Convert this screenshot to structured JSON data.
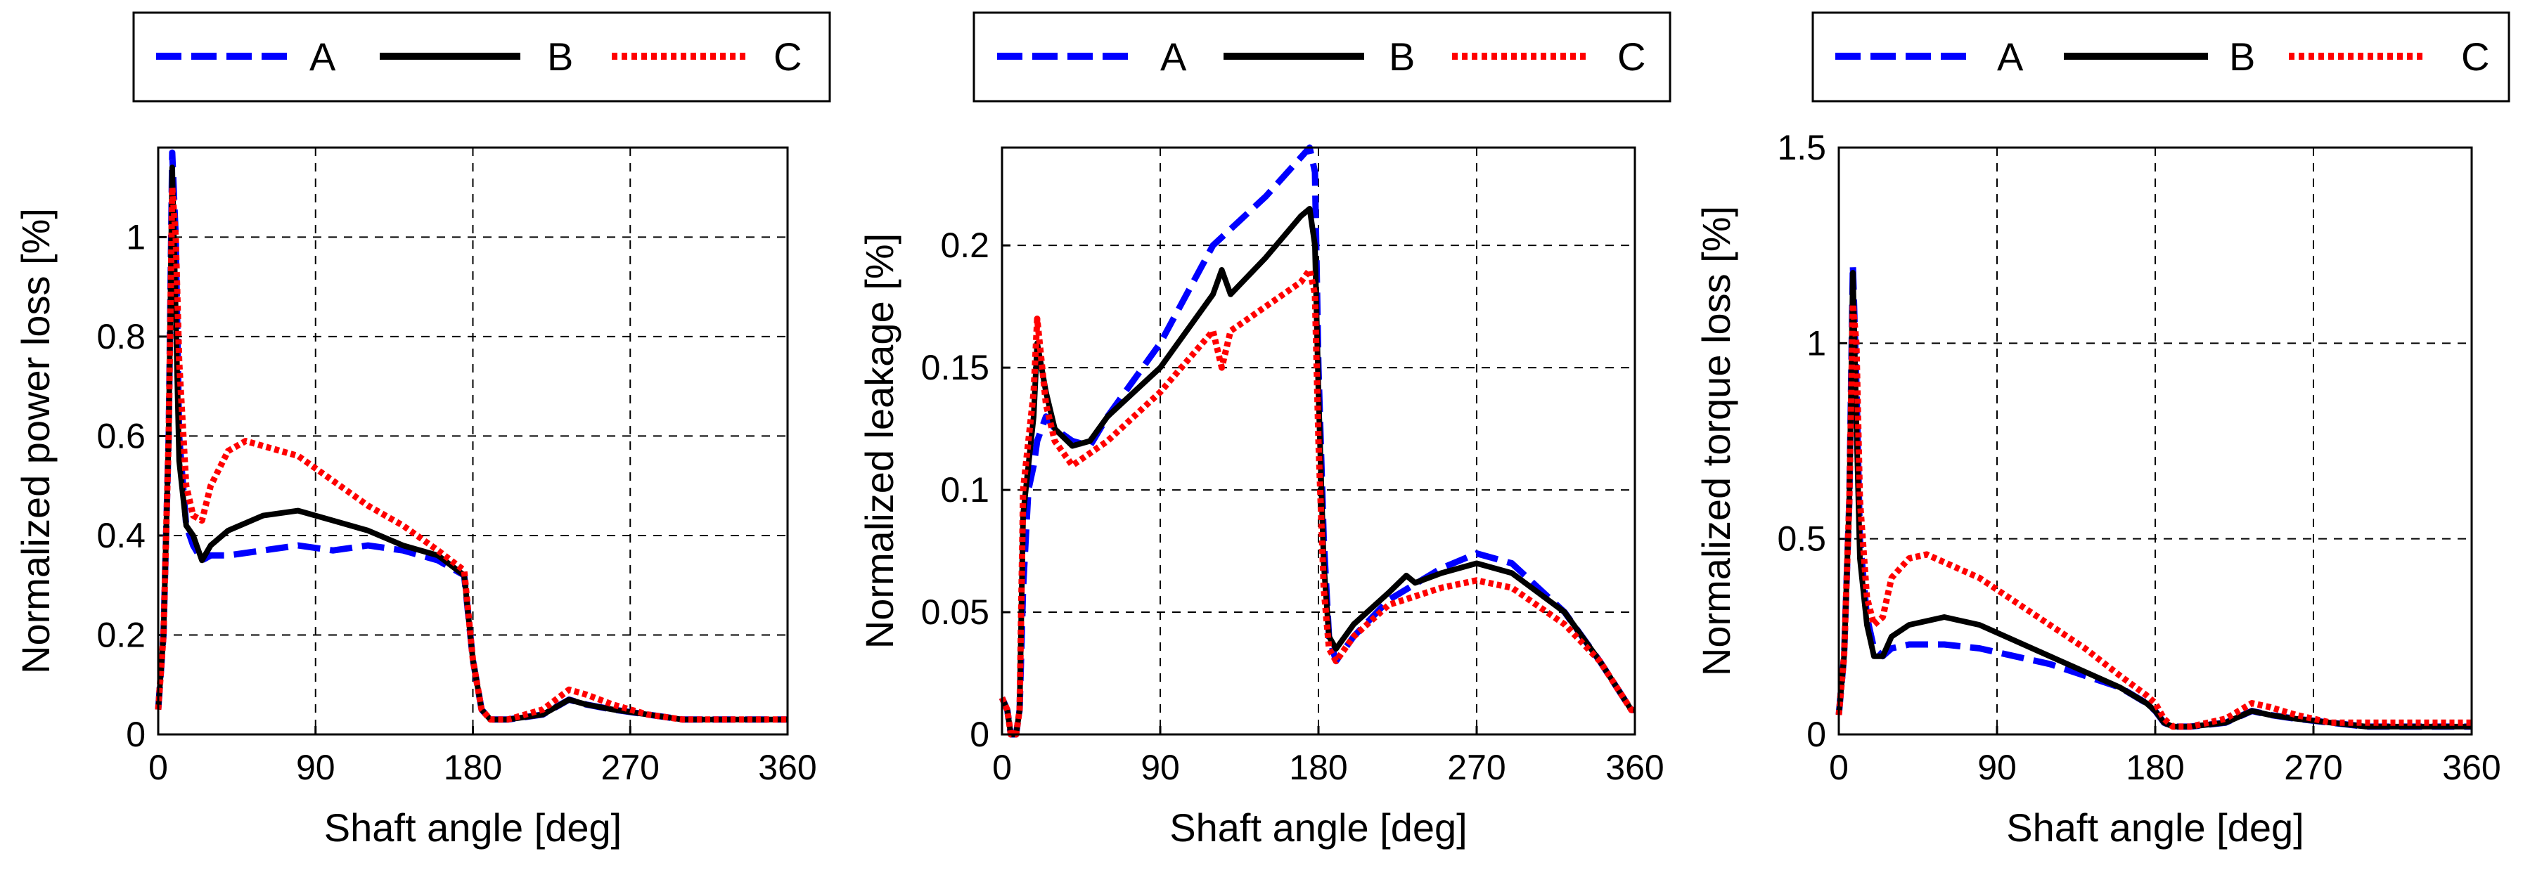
{
  "colors": {
    "A": "#0000ff",
    "B": "#000000",
    "C": "#ff0000"
  },
  "legend": [
    "A",
    "B",
    "C"
  ],
  "chart_data": [
    {
      "type": "line",
      "title": "",
      "xlabel": "Shaft angle [deg]",
      "ylabel": "Normalized power loss [%]",
      "xlim": [
        0,
        360
      ],
      "ylim": [
        0,
        1.18
      ],
      "xticks": [
        0,
        90,
        180,
        270,
        360
      ],
      "yticks": [
        0,
        0.2,
        0.4,
        0.6,
        0.8,
        1
      ],
      "xtick_labels": [
        "0",
        "90",
        "180",
        "270",
        "360"
      ],
      "ytick_labels": [
        "0",
        "0.2",
        "0.4",
        "0.6",
        "0.8",
        "1"
      ],
      "grid": true,
      "legend_position": "top",
      "series": [
        {
          "name": "A",
          "style": "dashed",
          "x": [
            0,
            3,
            6,
            8,
            10,
            12,
            16,
            20,
            25,
            30,
            40,
            60,
            80,
            100,
            120,
            140,
            160,
            175,
            180,
            185,
            190,
            200,
            220,
            235,
            245,
            260,
            280,
            300,
            330,
            360
          ],
          "y": [
            0.05,
            0.2,
            0.6,
            1.17,
            1.0,
            0.6,
            0.42,
            0.38,
            0.35,
            0.36,
            0.36,
            0.37,
            0.38,
            0.37,
            0.38,
            0.37,
            0.35,
            0.32,
            0.15,
            0.05,
            0.03,
            0.03,
            0.04,
            0.07,
            0.06,
            0.05,
            0.04,
            0.03,
            0.03,
            0.03
          ]
        },
        {
          "name": "B",
          "style": "solid",
          "x": [
            0,
            3,
            6,
            8,
            10,
            12,
            16,
            20,
            25,
            30,
            40,
            60,
            80,
            100,
            120,
            140,
            160,
            175,
            180,
            185,
            190,
            200,
            220,
            235,
            245,
            260,
            280,
            300,
            330,
            360
          ],
          "y": [
            0.05,
            0.2,
            0.6,
            1.14,
            0.85,
            0.55,
            0.42,
            0.4,
            0.35,
            0.38,
            0.41,
            0.44,
            0.45,
            0.43,
            0.41,
            0.38,
            0.36,
            0.32,
            0.15,
            0.05,
            0.03,
            0.03,
            0.04,
            0.07,
            0.06,
            0.05,
            0.04,
            0.03,
            0.03,
            0.03
          ]
        },
        {
          "name": "C",
          "style": "dotted",
          "x": [
            0,
            3,
            6,
            8,
            10,
            12,
            16,
            20,
            25,
            30,
            40,
            50,
            60,
            80,
            100,
            120,
            140,
            160,
            175,
            180,
            185,
            190,
            200,
            220,
            235,
            245,
            260,
            280,
            300,
            330,
            360
          ],
          "y": [
            0.05,
            0.2,
            0.6,
            1.1,
            1.0,
            0.75,
            0.5,
            0.44,
            0.43,
            0.5,
            0.57,
            0.59,
            0.58,
            0.56,
            0.51,
            0.46,
            0.42,
            0.37,
            0.33,
            0.15,
            0.05,
            0.03,
            0.03,
            0.05,
            0.09,
            0.08,
            0.06,
            0.04,
            0.03,
            0.03,
            0.03
          ]
        }
      ]
    },
    {
      "type": "line",
      "title": "",
      "xlabel": "Shaft angle [deg]",
      "ylabel": "Normalized leakage [%]",
      "xlim": [
        0,
        360
      ],
      "ylim": [
        0,
        0.24
      ],
      "xticks": [
        0,
        90,
        180,
        270,
        360
      ],
      "yticks": [
        0,
        0.05,
        0.1,
        0.15,
        0.2
      ],
      "xtick_labels": [
        "0",
        "90",
        "180",
        "270",
        "360"
      ],
      "ytick_labels": [
        "0",
        "0.05",
        "0.1",
        "0.15",
        "0.2"
      ],
      "grid": true,
      "legend_position": "top",
      "series": [
        {
          "name": "A",
          "style": "dashed",
          "x": [
            0,
            3,
            5,
            8,
            10,
            12,
            15,
            18,
            20,
            25,
            30,
            40,
            50,
            60,
            90,
            120,
            150,
            170,
            175,
            178,
            180,
            183,
            186,
            190,
            200,
            220,
            250,
            270,
            290,
            320,
            340,
            358,
            360
          ],
          "y": [
            0.015,
            0.01,
            0.0,
            0.0,
            0.01,
            0.06,
            0.1,
            0.11,
            0.12,
            0.13,
            0.125,
            0.12,
            0.118,
            0.13,
            0.16,
            0.2,
            0.22,
            0.236,
            0.24,
            0.23,
            0.15,
            0.08,
            0.04,
            0.03,
            0.04,
            0.055,
            0.068,
            0.074,
            0.07,
            0.05,
            0.03,
            0.01,
            0.01
          ]
        },
        {
          "name": "B",
          "style": "solid",
          "x": [
            0,
            3,
            5,
            8,
            10,
            12,
            15,
            18,
            20,
            25,
            30,
            40,
            50,
            60,
            90,
            120,
            125,
            130,
            150,
            170,
            175,
            178,
            180,
            183,
            186,
            190,
            200,
            220,
            230,
            235,
            250,
            270,
            290,
            320,
            340,
            358,
            360
          ],
          "y": [
            0.015,
            0.01,
            0.0,
            0.0,
            0.01,
            0.09,
            0.11,
            0.13,
            0.16,
            0.14,
            0.125,
            0.118,
            0.12,
            0.13,
            0.15,
            0.18,
            0.19,
            0.18,
            0.195,
            0.212,
            0.215,
            0.2,
            0.14,
            0.07,
            0.04,
            0.035,
            0.045,
            0.058,
            0.065,
            0.062,
            0.066,
            0.07,
            0.066,
            0.05,
            0.03,
            0.01,
            0.01
          ]
        },
        {
          "name": "C",
          "style": "dotted",
          "x": [
            0,
            3,
            5,
            8,
            10,
            12,
            15,
            18,
            20,
            25,
            30,
            40,
            50,
            60,
            90,
            120,
            125,
            130,
            150,
            170,
            175,
            178,
            180,
            183,
            186,
            190,
            200,
            220,
            250,
            270,
            290,
            320,
            340,
            358,
            360
          ],
          "y": [
            0.015,
            0.01,
            0.0,
            0.0,
            0.01,
            0.1,
            0.12,
            0.14,
            0.17,
            0.135,
            0.12,
            0.11,
            0.115,
            0.12,
            0.14,
            0.165,
            0.15,
            0.165,
            0.175,
            0.185,
            0.19,
            0.18,
            0.12,
            0.06,
            0.035,
            0.03,
            0.04,
            0.053,
            0.06,
            0.063,
            0.06,
            0.045,
            0.03,
            0.01,
            0.01
          ]
        }
      ]
    },
    {
      "type": "line",
      "title": "",
      "xlabel": "Shaft angle [deg]",
      "ylabel": "Normalized torque loss [%]",
      "xlim": [
        0,
        360
      ],
      "ylim": [
        0,
        1.5
      ],
      "xticks": [
        0,
        90,
        180,
        270,
        360
      ],
      "yticks": [
        0,
        0.5,
        1,
        1.5
      ],
      "xtick_labels": [
        "0",
        "90",
        "180",
        "270",
        "360"
      ],
      "ytick_labels": [
        "0",
        "0.5",
        "1",
        "1.5"
      ],
      "grid": true,
      "legend_position": "top",
      "series": [
        {
          "name": "A",
          "style": "dashed",
          "x": [
            0,
            3,
            6,
            8,
            10,
            12,
            16,
            20,
            25,
            30,
            40,
            60,
            80,
            100,
            120,
            140,
            160,
            175,
            180,
            185,
            190,
            200,
            220,
            235,
            245,
            260,
            280,
            300,
            330,
            360
          ],
          "y": [
            0.05,
            0.2,
            0.6,
            1.2,
            0.9,
            0.5,
            0.3,
            0.22,
            0.2,
            0.22,
            0.23,
            0.23,
            0.22,
            0.2,
            0.18,
            0.15,
            0.12,
            0.08,
            0.06,
            0.03,
            0.02,
            0.02,
            0.03,
            0.06,
            0.05,
            0.04,
            0.03,
            0.02,
            0.02,
            0.02
          ]
        },
        {
          "name": "B",
          "style": "solid",
          "x": [
            0,
            3,
            6,
            8,
            10,
            12,
            16,
            20,
            25,
            30,
            40,
            60,
            80,
            100,
            120,
            140,
            160,
            175,
            180,
            185,
            190,
            200,
            220,
            235,
            245,
            260,
            280,
            300,
            330,
            360
          ],
          "y": [
            0.05,
            0.2,
            0.6,
            1.18,
            0.8,
            0.45,
            0.28,
            0.2,
            0.2,
            0.25,
            0.28,
            0.3,
            0.28,
            0.24,
            0.2,
            0.16,
            0.12,
            0.08,
            0.06,
            0.03,
            0.02,
            0.02,
            0.03,
            0.06,
            0.05,
            0.04,
            0.03,
            0.02,
            0.02,
            0.02
          ]
        },
        {
          "name": "C",
          "style": "dotted",
          "x": [
            0,
            3,
            6,
            8,
            10,
            12,
            16,
            20,
            25,
            30,
            40,
            50,
            60,
            80,
            100,
            120,
            140,
            160,
            175,
            180,
            185,
            190,
            200,
            220,
            235,
            245,
            260,
            280,
            300,
            330,
            360
          ],
          "y": [
            0.05,
            0.2,
            0.6,
            1.1,
            1.0,
            0.6,
            0.35,
            0.28,
            0.3,
            0.4,
            0.45,
            0.46,
            0.44,
            0.4,
            0.34,
            0.28,
            0.22,
            0.15,
            0.1,
            0.08,
            0.04,
            0.02,
            0.02,
            0.04,
            0.08,
            0.07,
            0.05,
            0.03,
            0.03,
            0.03,
            0.03
          ]
        }
      ]
    }
  ]
}
